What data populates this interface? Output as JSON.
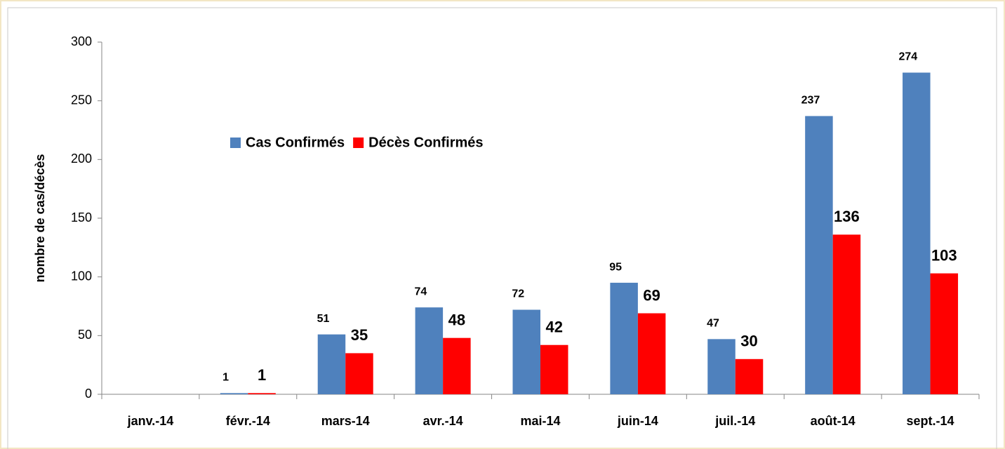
{
  "chart_data": {
    "type": "bar",
    "ylabel": "nombre de cas/décès",
    "categories": [
      "janv.-14",
      "févr.-14",
      "mars-14",
      "avr.-14",
      "mai-14",
      "juin-14",
      "juil.-14",
      "août-14",
      "sept.-14"
    ],
    "series": [
      {
        "name": "Cas Confirmés",
        "color": "#4f81bd",
        "values": [
          null,
          1,
          51,
          74,
          72,
          95,
          47,
          237,
          274
        ]
      },
      {
        "name": "Décès Confirmés",
        "color": "#ff0000",
        "values": [
          null,
          1,
          35,
          48,
          42,
          69,
          30,
          136,
          103
        ]
      }
    ],
    "ylim": [
      0,
      300
    ],
    "yticks": [
      0,
      50,
      100,
      150,
      200,
      250,
      300
    ],
    "grid": false
  }
}
